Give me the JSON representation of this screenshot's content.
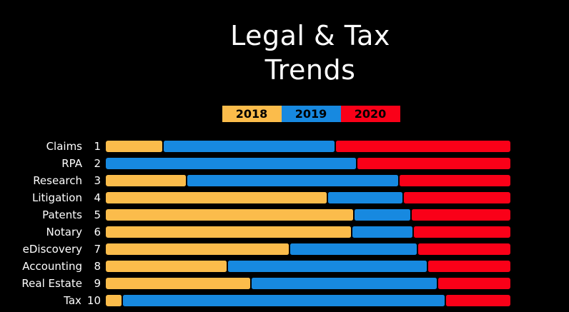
{
  "header": {
    "title_line1": "Legal & Tax",
    "title_line2": "Trends"
  },
  "colors": {
    "background": "#000000",
    "text": "#FFFFFF",
    "legend_text": "#000000",
    "y2018": "#FBBC4B",
    "y2019": "#1789E0",
    "y2020": "#FA0018"
  },
  "chart_data": {
    "type": "bar",
    "variant": "horizontal-stacked",
    "title": "Legal & Tax Trends",
    "categories": [
      "Claims",
      "RPA",
      "Research",
      "Litigation",
      "Patents",
      "Notary",
      "eDiscovery",
      "Accounting",
      "Real Estate",
      "Tax"
    ],
    "ranks": [
      "1",
      "2",
      "3",
      "4",
      "5",
      "6",
      "7",
      "8",
      "9",
      "10"
    ],
    "series": [
      {
        "name": "2018",
        "color": "#FBBC4B",
        "values": [
          14,
          0,
          20,
          55,
          61.5,
          61,
          45.5,
          30,
          36,
          4
        ]
      },
      {
        "name": "2019",
        "color": "#1789E0",
        "values": [
          42.5,
          62,
          52.5,
          18.5,
          14,
          15,
          31.5,
          49.5,
          46,
          80
        ]
      },
      {
        "name": "2020",
        "color": "#FA0018",
        "values": [
          43.5,
          38,
          27.5,
          26.5,
          24.5,
          24,
          23,
          20.5,
          18,
          16
        ]
      }
    ],
    "unit": "percent_of_row_width",
    "xlabel": "",
    "ylabel": "",
    "axis_ticks_visible": false,
    "grid": false,
    "legend_position": "top-center",
    "legend_labels": [
      "2018",
      "2019",
      "2020"
    ],
    "background": "#000000"
  }
}
